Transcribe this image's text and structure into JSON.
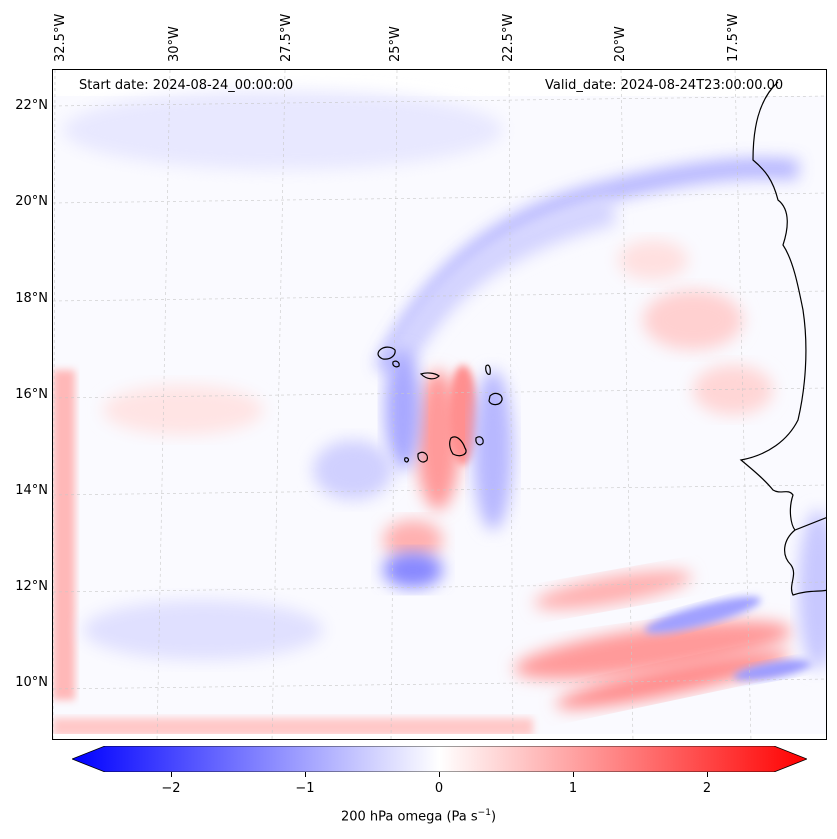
{
  "header": {
    "start_date": "Start date: 2024-08-24_00:00:00",
    "valid_date": "Valid_date: 2024-08-24T23:00:00.00"
  },
  "axes": {
    "longitude_labels": [
      "32.5°W",
      "30°W",
      "27.5°W",
      "25°W",
      "22.5°W",
      "20°W",
      "17.5°W"
    ],
    "latitude_labels": [
      "22°N",
      "20°N",
      "18°N",
      "16°N",
      "14°N",
      "12°N",
      "10°N"
    ]
  },
  "colorbar": {
    "label_prefix": "200 hPa omega (Pa s",
    "label_exp": "−1",
    "label_suffix": ")",
    "ticks": [
      "−2",
      "−1",
      "0",
      "1",
      "2"
    ],
    "range": [
      -2.6,
      2.6
    ],
    "colormap": "bwr",
    "extend": "both"
  },
  "colors": {
    "negative": "#0000ff",
    "neutral": "#ffffff",
    "positive": "#ff0000",
    "gridline": "#c8c8c8",
    "coastline": "#000000"
  }
}
